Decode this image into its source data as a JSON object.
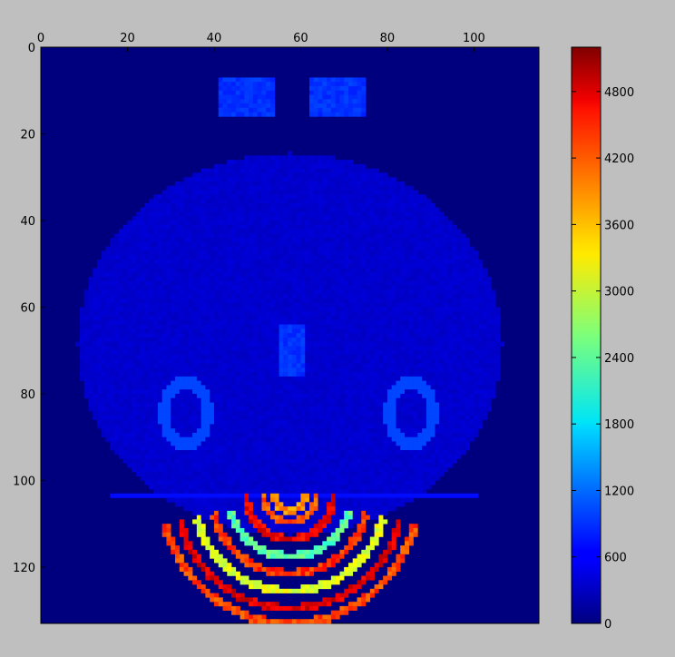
{
  "chart_data": {
    "type": "heatmap",
    "title": "",
    "xlabel": "",
    "ylabel": "",
    "image_shape": {
      "rows": 133,
      "cols": 115
    },
    "x_ticks": [
      0,
      20,
      40,
      60,
      80,
      100
    ],
    "y_ticks": [
      0,
      20,
      40,
      60,
      80,
      100,
      120
    ],
    "x_axis_position": "top",
    "grid": false,
    "colormap": "jet",
    "colorbar": {
      "position": "right",
      "range": [
        0,
        5200
      ],
      "ticks": [
        0,
        600,
        1200,
        1800,
        2400,
        3000,
        3600,
        4200,
        4800
      ]
    },
    "background_value": 0,
    "regions": [
      {
        "type": "ellipse",
        "name": "brain-outline",
        "cx": 57,
        "cy": 68,
        "rx": 49,
        "ry": 44,
        "value": 400,
        "noise": 120
      },
      {
        "type": "ellipse",
        "name": "left-structure",
        "cx": 48,
        "cy": 66,
        "rx": 24,
        "ry": 22,
        "value": 220,
        "noise": 60
      },
      {
        "type": "ellipse",
        "name": "right-structure",
        "cx": 66,
        "cy": 66,
        "rx": 24,
        "ry": 22,
        "value": 220,
        "noise": 60
      },
      {
        "type": "rect",
        "name": "left-bulb",
        "x0": 41,
        "y0": 7,
        "x1": 53,
        "y1": 15,
        "value": 900,
        "noise": 200
      },
      {
        "type": "rect",
        "name": "right-bulb",
        "x0": 62,
        "y0": 7,
        "x1": 74,
        "y1": 15,
        "value": 900,
        "noise": 200
      },
      {
        "type": "ellipse_ring",
        "name": "left-hippocampus",
        "cx": 33,
        "cy": 84,
        "rx": 5,
        "ry": 7,
        "width": 1.2,
        "value": 1000
      },
      {
        "type": "ellipse_ring",
        "name": "right-hippocampus",
        "cx": 85,
        "cy": 84,
        "rx": 5,
        "ry": 7,
        "width": 1.2,
        "value": 1000
      },
      {
        "type": "hline",
        "name": "caudal-boundary",
        "x0": 16,
        "x1": 100,
        "y": 103,
        "value": 700
      },
      {
        "type": "rect",
        "name": "midline",
        "x0": 55,
        "y0": 64,
        "x1": 60,
        "y1": 75,
        "value": 900,
        "noise": 200
      }
    ],
    "cerebellum": {
      "center_x": 57,
      "center_y": 103,
      "arcs": [
        {
          "radius": 3.5,
          "value": 3800
        },
        {
          "radius": 6,
          "value": 4100
        },
        {
          "radius": 10,
          "value": 4600
        },
        {
          "radius": 14,
          "value": 2400
        },
        {
          "radius": 18,
          "value": 4300
        },
        {
          "radius": 22,
          "value": 3100
        },
        {
          "radius": 26,
          "value": 4700
        },
        {
          "radius": 29.5,
          "value": 4200
        }
      ],
      "max_radius": 31,
      "max_y": 132,
      "width": 0.9,
      "spread": 35
    }
  }
}
